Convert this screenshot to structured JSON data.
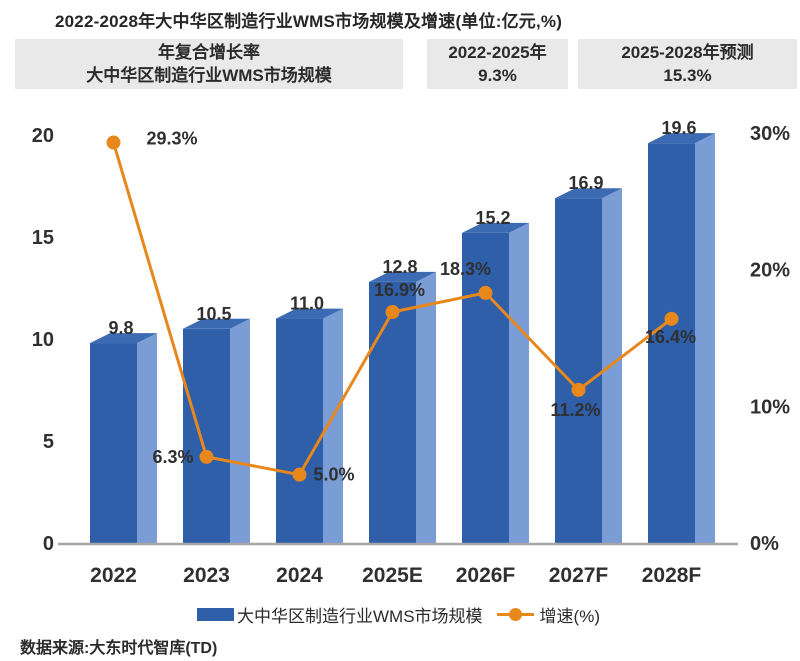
{
  "title": "2022-2028年大中华区制造行业WMS市场规模及增速(单位:亿元,%)",
  "header_boxes": [
    {
      "line1": "年复合增长率",
      "line2": "大中华区制造行业WMS市场规模"
    },
    {
      "line1": "2022-2025年",
      "line2": "9.3%"
    },
    {
      "line1": "2025-2028年预测",
      "line2": "15.3%"
    }
  ],
  "chart_data": {
    "type": "bar+line combo",
    "categories": [
      "2022",
      "2023",
      "2024",
      "2025E",
      "2026F",
      "2027F",
      "2028F"
    ],
    "series": [
      {
        "name": "大中华区制造行业WMS市场规模",
        "type": "bar",
        "axis": "left",
        "values": [
          9.8,
          10.5,
          11.0,
          12.8,
          15.2,
          16.9,
          19.6
        ]
      },
      {
        "name": "增速(%)",
        "type": "line",
        "axis": "right",
        "values": [
          29.3,
          6.3,
          5.0,
          16.9,
          18.3,
          11.2,
          16.4
        ]
      }
    ],
    "bar_labels": [
      "9.8",
      "10.5",
      "11.0",
      "12.8",
      "15.2",
      "16.9",
      "19.6"
    ],
    "line_labels": [
      "29.3%",
      "6.3%",
      "5.0%",
      "16.9%",
      "18.3%",
      "11.2%",
      "16.4%"
    ],
    "left_axis": {
      "range": [
        0,
        20
      ],
      "tick_values": [
        0,
        5,
        10,
        15,
        20
      ],
      "tick_labels": [
        "0",
        "5",
        "10",
        "15",
        "20"
      ]
    },
    "right_axis": {
      "range": [
        0,
        30
      ],
      "tick_values": [
        0,
        10,
        20,
        30
      ],
      "tick_labels": [
        "0%",
        "10%",
        "20%",
        "30%"
      ]
    },
    "grid": false,
    "legend_position": "bottom",
    "bar_style": "3d",
    "colors": {
      "bar_front": "#2E5FA8",
      "bar_top": "#3C6BB3",
      "bar_side": "#7B9DD6",
      "line": "#E8871B",
      "axis_line": "#A6A6A6",
      "label": "#303030"
    }
  },
  "legend": {
    "bar_label": "大中华区制造行业WMS市场规模",
    "line_label": "增速(%)"
  },
  "source": "数据来源:大东时代智库(TD)"
}
